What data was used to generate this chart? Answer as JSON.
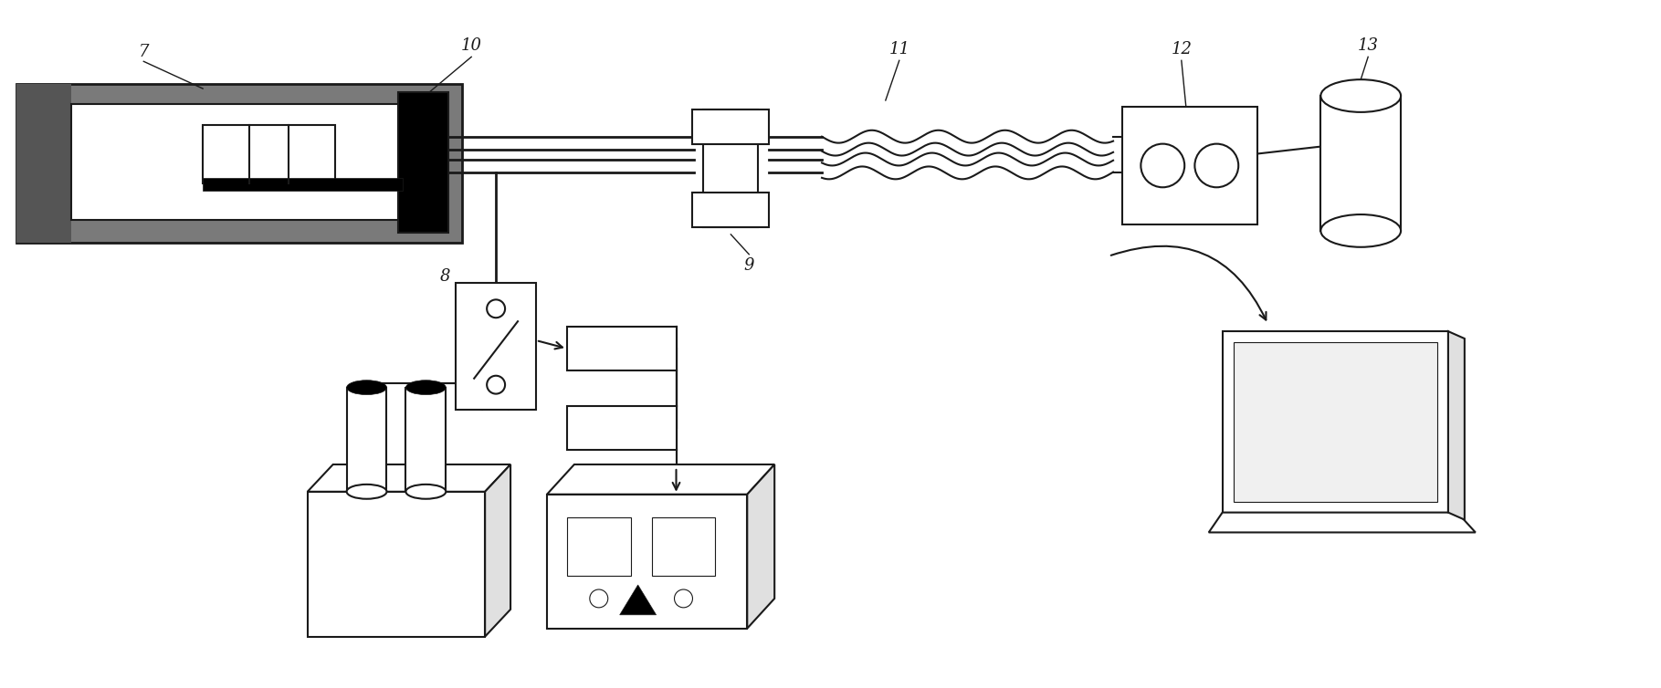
{
  "bg_color": "#ffffff",
  "lc": "#1a1a1a",
  "gray": "#7a7a7a",
  "light_gray": "#d0d0d0",
  "fs": 13,
  "lw": 1.5
}
